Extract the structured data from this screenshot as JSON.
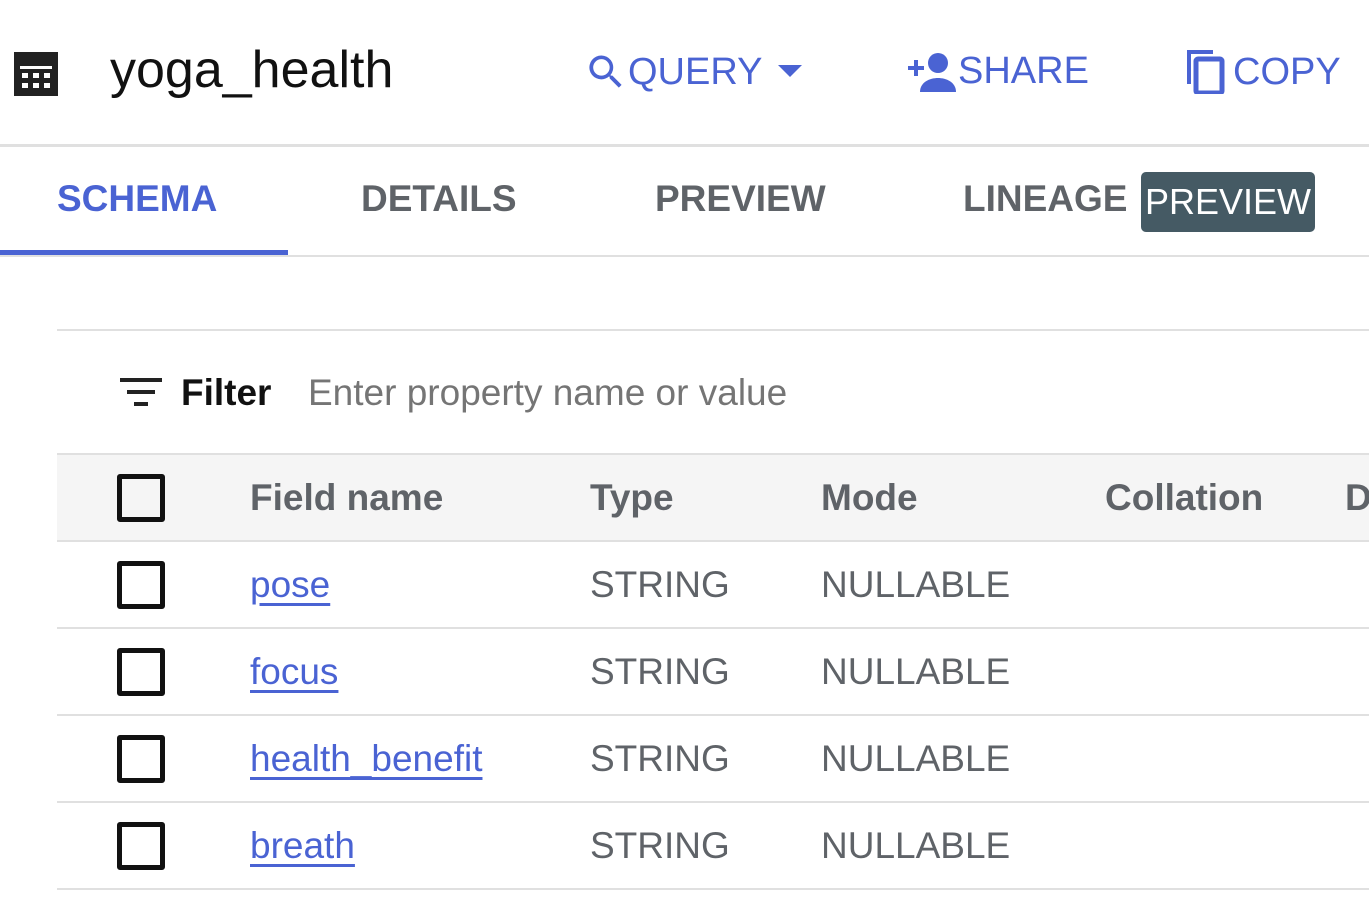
{
  "header": {
    "title": "yoga_health",
    "icon": "table-icon",
    "actions": [
      {
        "label": "QUERY",
        "icon": "search-icon"
      },
      {
        "label": "SHARE",
        "icon": "person-add-icon"
      },
      {
        "label": "COPY",
        "icon": "copy-icon"
      }
    ]
  },
  "tabs": [
    {
      "label": "SCHEMA",
      "active": true
    },
    {
      "label": "DETAILS"
    },
    {
      "label": "PREVIEW"
    },
    {
      "label": "LINEAGE",
      "badge": "PREVIEW"
    }
  ],
  "filter": {
    "label": "Filter",
    "placeholder": "Enter property name or value"
  },
  "table": {
    "columns": [
      "Field name",
      "Type",
      "Mode",
      "Collation",
      "D"
    ],
    "rows": [
      {
        "name": "pose",
        "type": "STRING",
        "mode": "NULLABLE"
      },
      {
        "name": "focus",
        "type": "STRING",
        "mode": "NULLABLE"
      },
      {
        "name": "health_benefit",
        "type": "STRING",
        "mode": "NULLABLE"
      },
      {
        "name": "breath",
        "type": "STRING",
        "mode": "NULLABLE"
      }
    ]
  },
  "colors": {
    "accent": "#4a63d3",
    "badge": "#455a64"
  }
}
